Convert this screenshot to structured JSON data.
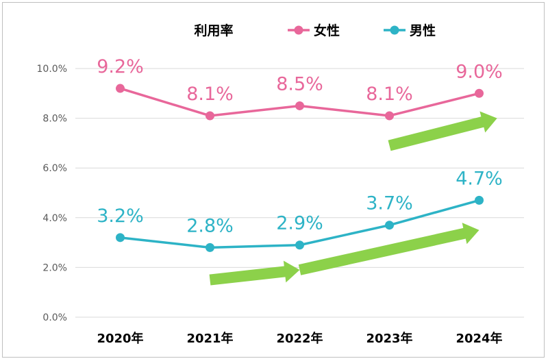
{
  "chart_data": {
    "type": "line",
    "title": "利用率",
    "categories": [
      "2020年",
      "2021年",
      "2022年",
      "2023年",
      "2024年"
    ],
    "ylim": [
      0,
      10
    ],
    "yticks": [
      "0.0%",
      "2.0%",
      "4.0%",
      "6.0%",
      "8.0%",
      "10.0%"
    ],
    "grid": true,
    "legend_position": "top",
    "series": [
      {
        "name": "女性",
        "color": "#e8679a",
        "values": [
          9.2,
          8.1,
          8.5,
          8.1,
          9.0
        ],
        "labels": [
          "9.2%",
          "8.1%",
          "8.5%",
          "8.1%",
          "9.0%"
        ]
      },
      {
        "name": "男性",
        "color": "#2db3c6",
        "values": [
          3.2,
          2.8,
          2.9,
          3.7,
          4.7
        ],
        "labels": [
          "3.2%",
          "2.8%",
          "2.9%",
          "3.7%",
          "4.7%"
        ]
      }
    ],
    "annotations": {
      "arrow_color": "#8cd14a",
      "arrows": [
        {
          "from": [
            1.0,
            1.5
          ],
          "to": [
            2.0,
            1.9
          ]
        },
        {
          "from": [
            2.0,
            1.9
          ],
          "to": [
            4.0,
            3.5
          ]
        },
        {
          "from": [
            3.0,
            6.9
          ],
          "to": [
            4.2,
            8.0
          ]
        }
      ]
    }
  }
}
